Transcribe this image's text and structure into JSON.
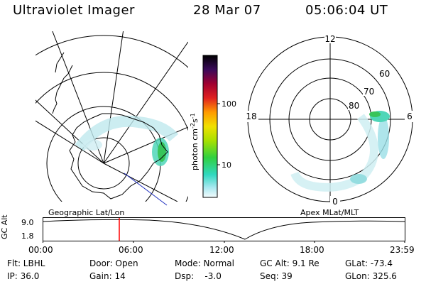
{
  "header": {
    "instrument": "Ultraviolet Imager",
    "date": "28 Mar 07",
    "time": "05:06:04 UT"
  },
  "geo_panel": {
    "label": "Geographic Lat/Lon"
  },
  "apex_panel": {
    "label": "Apex MLat/MLT",
    "mlt_labels": {
      "top": "12",
      "left": "18",
      "right": "6",
      "bottom": "0"
    },
    "lat_labels": [
      "60",
      "70",
      "80"
    ]
  },
  "colorbar": {
    "label_main": "photon cm",
    "label_exp1": "-2",
    "label_mid": "s",
    "label_exp2": "-1",
    "ticks": [
      "100",
      "10"
    ]
  },
  "timeline": {
    "axis_label": "GC Alt",
    "ytick_top": "9.0",
    "ytick_bottom": "1.8",
    "xticks": [
      "00:00",
      "06:00",
      "12:00",
      "18:00",
      "23:59"
    ],
    "marker_color": "#ff0000"
  },
  "status": {
    "filter": "Flt: LBHL",
    "ip": "IP: 36.0",
    "door": "Door: Open",
    "gain": "Gain: 14",
    "mode": "Mode: Normal",
    "dsp": "Dsp:    -3.0",
    "gc_alt": "GC Alt: 9.1 Re",
    "seq": "Seq: 39",
    "glat": "GLat: -73.4",
    "glon": "GLon: 325.6"
  }
}
